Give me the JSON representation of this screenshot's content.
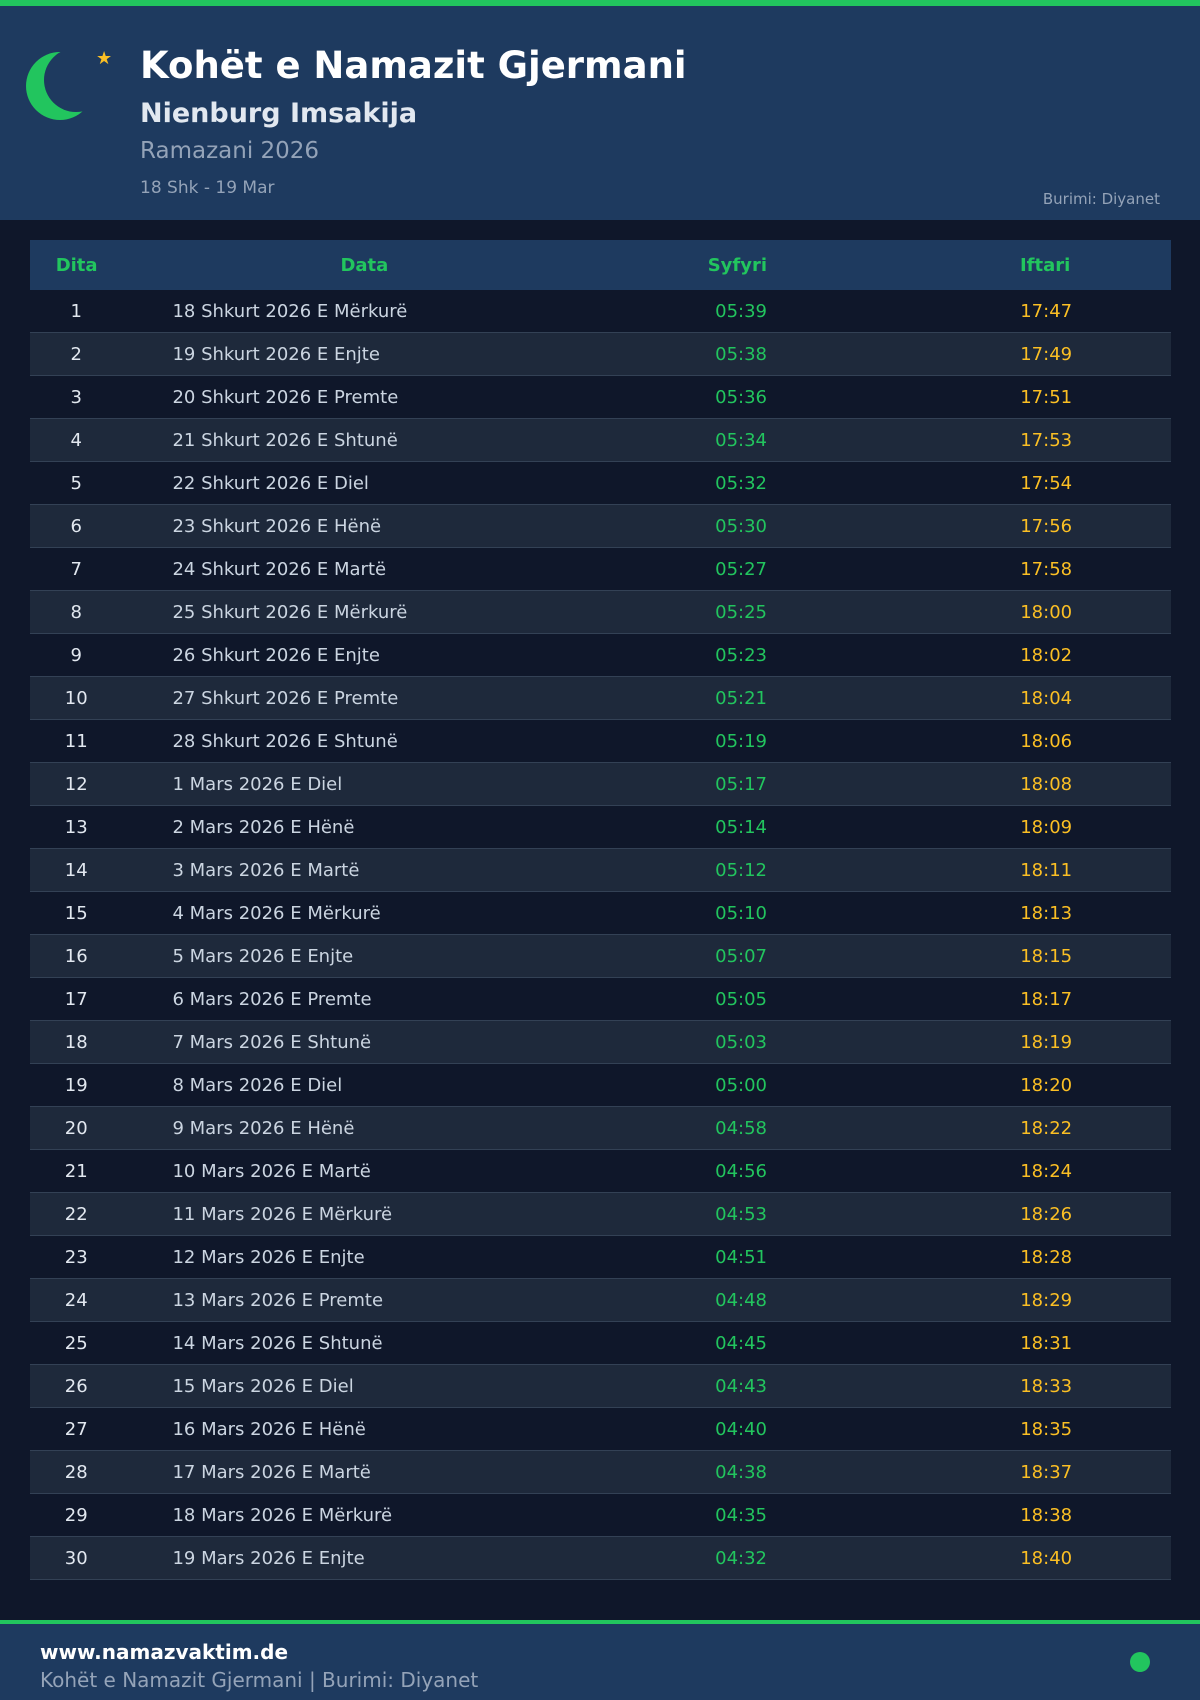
{
  "header": {
    "title": "Kohët e Namazit Gjermani",
    "subtitle": "Nienburg Imsakija",
    "period": "Ramazani 2026",
    "range": "18 Shk - 19 Mar",
    "source": "Burimi: Diyanet"
  },
  "colors": {
    "accent": "#22c55e",
    "iftar": "#fbbf24",
    "header_bg": "#1e3a5f",
    "page_bg": "#0f172a"
  },
  "table": {
    "columns": [
      "Dita",
      "Data",
      "Syfyri",
      "Iftari"
    ],
    "rows": [
      [
        "1",
        "18 Shkurt 2026 E Mërkurë",
        "05:39",
        "17:47"
      ],
      [
        "2",
        "19 Shkurt 2026 E Enjte",
        "05:38",
        "17:49"
      ],
      [
        "3",
        "20 Shkurt 2026 E Premte",
        "05:36",
        "17:51"
      ],
      [
        "4",
        "21 Shkurt 2026 E Shtunë",
        "05:34",
        "17:53"
      ],
      [
        "5",
        "22 Shkurt 2026 E Diel",
        "05:32",
        "17:54"
      ],
      [
        "6",
        "23 Shkurt 2026 E Hënë",
        "05:30",
        "17:56"
      ],
      [
        "7",
        "24 Shkurt 2026 E Martë",
        "05:27",
        "17:58"
      ],
      [
        "8",
        "25 Shkurt 2026 E Mërkurë",
        "05:25",
        "18:00"
      ],
      [
        "9",
        "26 Shkurt 2026 E Enjte",
        "05:23",
        "18:02"
      ],
      [
        "10",
        "27 Shkurt 2026 E Premte",
        "05:21",
        "18:04"
      ],
      [
        "11",
        "28 Shkurt 2026 E Shtunë",
        "05:19",
        "18:06"
      ],
      [
        "12",
        "1 Mars 2026 E Diel",
        "05:17",
        "18:08"
      ],
      [
        "13",
        "2 Mars 2026 E Hënë",
        "05:14",
        "18:09"
      ],
      [
        "14",
        "3 Mars 2026 E Martë",
        "05:12",
        "18:11"
      ],
      [
        "15",
        "4 Mars 2026 E Mërkurë",
        "05:10",
        "18:13"
      ],
      [
        "16",
        "5 Mars 2026 E Enjte",
        "05:07",
        "18:15"
      ],
      [
        "17",
        "6 Mars 2026 E Premte",
        "05:05",
        "18:17"
      ],
      [
        "18",
        "7 Mars 2026 E Shtunë",
        "05:03",
        "18:19"
      ],
      [
        "19",
        "8 Mars 2026 E Diel",
        "05:00",
        "18:20"
      ],
      [
        "20",
        "9 Mars 2026 E Hënë",
        "04:58",
        "18:22"
      ],
      [
        "21",
        "10 Mars 2026 E Martë",
        "04:56",
        "18:24"
      ],
      [
        "22",
        "11 Mars 2026 E Mërkurë",
        "04:53",
        "18:26"
      ],
      [
        "23",
        "12 Mars 2026 E Enjte",
        "04:51",
        "18:28"
      ],
      [
        "24",
        "13 Mars 2026 E Premte",
        "04:48",
        "18:29"
      ],
      [
        "25",
        "14 Mars 2026 E Shtunë",
        "04:45",
        "18:31"
      ],
      [
        "26",
        "15 Mars 2026 E Diel",
        "04:43",
        "18:33"
      ],
      [
        "27",
        "16 Mars 2026 E Hënë",
        "04:40",
        "18:35"
      ],
      [
        "28",
        "17 Mars 2026 E Martë",
        "04:38",
        "18:37"
      ],
      [
        "29",
        "18 Mars 2026 E Mërkurë",
        "04:35",
        "18:38"
      ],
      [
        "30",
        "19 Mars 2026 E Enjte",
        "04:32",
        "18:40"
      ]
    ]
  },
  "footer": {
    "site": "www.namazvaktim.de",
    "text": "Kohët e Namazit Gjermani | Burimi: Diyanet"
  }
}
